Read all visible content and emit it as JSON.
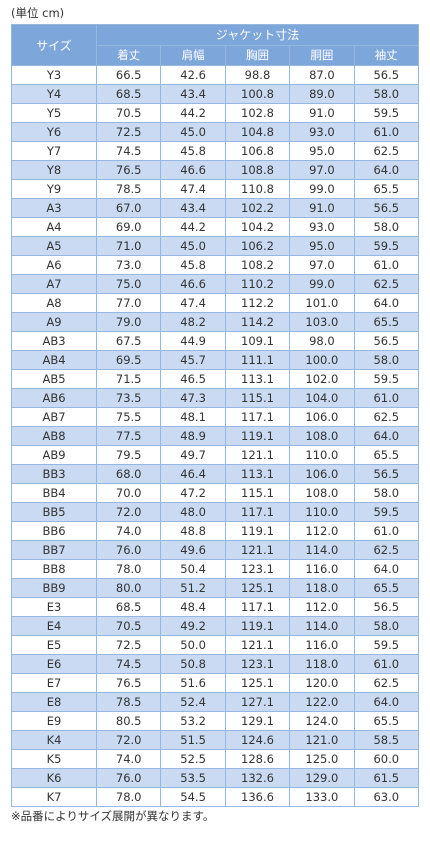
{
  "unit_label": "(単位 cm)",
  "table": {
    "size_header": "サイズ",
    "group_header": "ジャケット寸法",
    "columns": [
      "着丈",
      "肩幅",
      "胸囲",
      "胴囲",
      "袖丈"
    ],
    "rows": [
      {
        "size": "Y3",
        "values": [
          "66.5",
          "42.6",
          "98.8",
          "87.0",
          "56.5"
        ]
      },
      {
        "size": "Y4",
        "values": [
          "68.5",
          "43.4",
          "100.8",
          "89.0",
          "58.0"
        ]
      },
      {
        "size": "Y5",
        "values": [
          "70.5",
          "44.2",
          "102.8",
          "91.0",
          "59.5"
        ]
      },
      {
        "size": "Y6",
        "values": [
          "72.5",
          "45.0",
          "104.8",
          "93.0",
          "61.0"
        ]
      },
      {
        "size": "Y7",
        "values": [
          "74.5",
          "45.8",
          "106.8",
          "95.0",
          "62.5"
        ]
      },
      {
        "size": "Y8",
        "values": [
          "76.5",
          "46.6",
          "108.8",
          "97.0",
          "64.0"
        ]
      },
      {
        "size": "Y9",
        "values": [
          "78.5",
          "47.4",
          "110.8",
          "99.0",
          "65.5"
        ]
      },
      {
        "size": "A3",
        "values": [
          "67.0",
          "43.4",
          "102.2",
          "91.0",
          "56.5"
        ]
      },
      {
        "size": "A4",
        "values": [
          "69.0",
          "44.2",
          "104.2",
          "93.0",
          "58.0"
        ]
      },
      {
        "size": "A5",
        "values": [
          "71.0",
          "45.0",
          "106.2",
          "95.0",
          "59.5"
        ]
      },
      {
        "size": "A6",
        "values": [
          "73.0",
          "45.8",
          "108.2",
          "97.0",
          "61.0"
        ]
      },
      {
        "size": "A7",
        "values": [
          "75.0",
          "46.6",
          "110.2",
          "99.0",
          "62.5"
        ]
      },
      {
        "size": "A8",
        "values": [
          "77.0",
          "47.4",
          "112.2",
          "101.0",
          "64.0"
        ]
      },
      {
        "size": "A9",
        "values": [
          "79.0",
          "48.2",
          "114.2",
          "103.0",
          "65.5"
        ]
      },
      {
        "size": "AB3",
        "values": [
          "67.5",
          "44.9",
          "109.1",
          "98.0",
          "56.5"
        ]
      },
      {
        "size": "AB4",
        "values": [
          "69.5",
          "45.7",
          "111.1",
          "100.0",
          "58.0"
        ]
      },
      {
        "size": "AB5",
        "values": [
          "71.5",
          "46.5",
          "113.1",
          "102.0",
          "59.5"
        ]
      },
      {
        "size": "AB6",
        "values": [
          "73.5",
          "47.3",
          "115.1",
          "104.0",
          "61.0"
        ]
      },
      {
        "size": "AB7",
        "values": [
          "75.5",
          "48.1",
          "117.1",
          "106.0",
          "62.5"
        ]
      },
      {
        "size": "AB8",
        "values": [
          "77.5",
          "48.9",
          "119.1",
          "108.0",
          "64.0"
        ]
      },
      {
        "size": "AB9",
        "values": [
          "79.5",
          "49.7",
          "121.1",
          "110.0",
          "65.5"
        ]
      },
      {
        "size": "BB3",
        "values": [
          "68.0",
          "46.4",
          "113.1",
          "106.0",
          "56.5"
        ]
      },
      {
        "size": "BB4",
        "values": [
          "70.0",
          "47.2",
          "115.1",
          "108.0",
          "58.0"
        ]
      },
      {
        "size": "BB5",
        "values": [
          "72.0",
          "48.0",
          "117.1",
          "110.0",
          "59.5"
        ]
      },
      {
        "size": "BB6",
        "values": [
          "74.0",
          "48.8",
          "119.1",
          "112.0",
          "61.0"
        ]
      },
      {
        "size": "BB7",
        "values": [
          "76.0",
          "49.6",
          "121.1",
          "114.0",
          "62.5"
        ]
      },
      {
        "size": "BB8",
        "values": [
          "78.0",
          "50.4",
          "123.1",
          "116.0",
          "64.0"
        ]
      },
      {
        "size": "BB9",
        "values": [
          "80.0",
          "51.2",
          "125.1",
          "118.0",
          "65.5"
        ]
      },
      {
        "size": "E3",
        "values": [
          "68.5",
          "48.4",
          "117.1",
          "112.0",
          "56.5"
        ]
      },
      {
        "size": "E4",
        "values": [
          "70.5",
          "49.2",
          "119.1",
          "114.0",
          "58.0"
        ]
      },
      {
        "size": "E5",
        "values": [
          "72.5",
          "50.0",
          "121.1",
          "116.0",
          "59.5"
        ]
      },
      {
        "size": "E6",
        "values": [
          "74.5",
          "50.8",
          "123.1",
          "118.0",
          "61.0"
        ]
      },
      {
        "size": "E7",
        "values": [
          "76.5",
          "51.6",
          "125.1",
          "120.0",
          "62.5"
        ]
      },
      {
        "size": "E8",
        "values": [
          "78.5",
          "52.4",
          "127.1",
          "122.0",
          "64.0"
        ]
      },
      {
        "size": "E9",
        "values": [
          "80.5",
          "53.2",
          "129.1",
          "124.0",
          "65.5"
        ]
      },
      {
        "size": "K4",
        "values": [
          "72.0",
          "51.5",
          "124.6",
          "121.0",
          "58.5"
        ]
      },
      {
        "size": "K5",
        "values": [
          "74.0",
          "52.5",
          "128.6",
          "125.0",
          "60.0"
        ]
      },
      {
        "size": "K6",
        "values": [
          "76.0",
          "53.5",
          "132.6",
          "129.0",
          "61.5"
        ]
      },
      {
        "size": "K7",
        "values": [
          "78.0",
          "54.5",
          "136.6",
          "133.0",
          "63.0"
        ]
      }
    ]
  },
  "note": "※品番によりサイズ展開が異なります。",
  "colors": {
    "header_bg": "#7da6db",
    "stripe_bg": "#c9daf2",
    "border": "#96b8e0",
    "text": "#333333"
  }
}
